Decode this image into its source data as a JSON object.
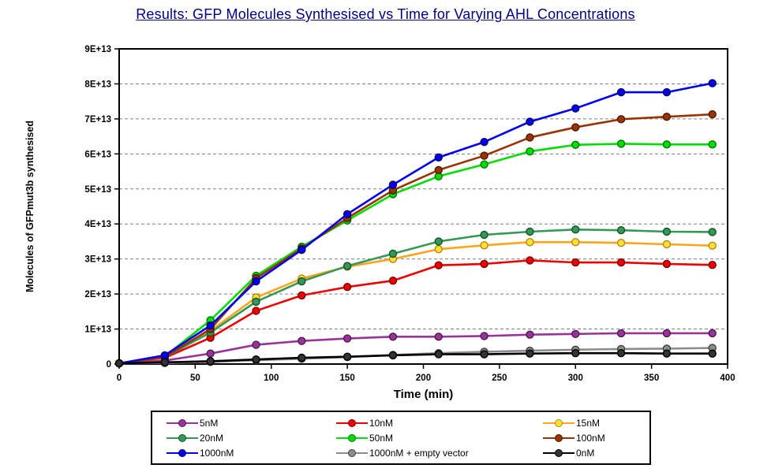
{
  "title": "Results: GFP Molecules Synthesised vs Time for Varying AHL Concentrations",
  "chart_data": {
    "type": "line",
    "title": "Results: GFP Molecules Synthesised vs Time for Varying AHL Concentrations",
    "xlabel": "Time (min)",
    "ylabel": "Molecules of GFPmut3b synthesised",
    "xlim": [
      0,
      400
    ],
    "ylim": [
      0,
      90000000000000.0
    ],
    "xticks": [
      0,
      50,
      100,
      150,
      200,
      250,
      300,
      350,
      400
    ],
    "yticks": [
      0,
      10000000000000.0,
      20000000000000.0,
      30000000000000.0,
      40000000000000.0,
      50000000000000.0,
      60000000000000.0,
      70000000000000.0,
      80000000000000.0,
      90000000000000.0
    ],
    "ytick_labels": [
      "0",
      "1E+13",
      "2E+13",
      "3E+13",
      "4E+13",
      "5E+13",
      "6E+13",
      "7E+13",
      "8E+13",
      "9E+13"
    ],
    "grid": "horizontal-dashed",
    "legend_position": "bottom",
    "x": [
      0,
      30,
      60,
      90,
      120,
      150,
      180,
      210,
      240,
      270,
      300,
      330,
      360,
      390
    ],
    "series": [
      {
        "name": "5nM",
        "color": "#993399",
        "marker_fill": "#993399",
        "marker_edge": "#4d1a4d",
        "values": [
          200000000000.0,
          1000000000000.0,
          3000000000000.0,
          5500000000000.0,
          6600000000000.0,
          7300000000000.0,
          7800000000000.0,
          7800000000000.0,
          8000000000000.0,
          8400000000000.0,
          8600000000000.0,
          8800000000000.0,
          8800000000000.0,
          8800000000000.0
        ]
      },
      {
        "name": "10nM",
        "color": "#ee0000",
        "marker_fill": "#ee0000",
        "marker_edge": "#7a0000",
        "values": [
          200000000000.0,
          1800000000000.0,
          7500000000000.0,
          15200000000000.0,
          19600000000000.0,
          22000000000000.0,
          23800000000000.0,
          28200000000000.0,
          28600000000000.0,
          29600000000000.0,
          29000000000000.0,
          29000000000000.0,
          28600000000000.0,
          28300000000000.0
        ]
      },
      {
        "name": "15nM",
        "color": "#ffa41c",
        "marker_fill": "#ffe135",
        "marker_edge": "#b8860b",
        "values": [
          200000000000.0,
          2000000000000.0,
          9500000000000.0,
          19000000000000.0,
          24400000000000.0,
          27800000000000.0,
          30000000000000.0,
          32800000000000.0,
          33900000000000.0,
          34800000000000.0,
          34800000000000.0,
          34600000000000.0,
          34200000000000.0,
          33800000000000.0
        ]
      },
      {
        "name": "20nM",
        "color": "#339955",
        "marker_fill": "#339955",
        "marker_edge": "#14522b",
        "values": [
          200000000000.0,
          2000000000000.0,
          9000000000000.0,
          17800000000000.0,
          23600000000000.0,
          28000000000000.0,
          31500000000000.0,
          35000000000000.0,
          36900000000000.0,
          37800000000000.0,
          38400000000000.0,
          38200000000000.0,
          37800000000000.0,
          37700000000000.0
        ]
      },
      {
        "name": "50nM",
        "color": "#00dd00",
        "marker_fill": "#00dd00",
        "marker_edge": "#007700",
        "values": [
          200000000000.0,
          2200000000000.0,
          12500000000000.0,
          25200000000000.0,
          33500000000000.0,
          41000000000000.0,
          48500000000000.0,
          53600000000000.0,
          57000000000000.0,
          60700000000000.0,
          62600000000000.0,
          62900000000000.0,
          62700000000000.0,
          62700000000000.0
        ]
      },
      {
        "name": "100nM",
        "color": "#993300",
        "marker_fill": "#993300",
        "marker_edge": "#4d1a00",
        "values": [
          200000000000.0,
          2000000000000.0,
          10000000000000.0,
          24500000000000.0,
          33000000000000.0,
          41700000000000.0,
          49600000000000.0,
          55400000000000.0,
          59500000000000.0,
          64700000000000.0,
          67600000000000.0,
          69900000000000.0,
          70600000000000.0,
          71300000000000.0
        ]
      },
      {
        "name": "1000nM",
        "color": "#0000ee",
        "marker_fill": "#0000ee",
        "marker_edge": "#000066",
        "values": [
          200000000000.0,
          2500000000000.0,
          11000000000000.0,
          23600000000000.0,
          32600000000000.0,
          42800000000000.0,
          51200000000000.0,
          59000000000000.0,
          63400000000000.0,
          69200000000000.0,
          73000000000000.0,
          77600000000000.0,
          77600000000000.0,
          80200000000000.0
        ]
      },
      {
        "name": "1000nM + empty vector",
        "color": "#8c8c8c",
        "marker_fill": "#8c8c8c",
        "marker_edge": "#404040",
        "values": [
          200000000000.0,
          300000000000.0,
          600000000000.0,
          1100000000000.0,
          1500000000000.0,
          2000000000000.0,
          2600000000000.0,
          3100000000000.0,
          3500000000000.0,
          3800000000000.0,
          4100000000000.0,
          4300000000000.0,
          4400000000000.0,
          4600000000000.0
        ]
      },
      {
        "name": "0nM",
        "color": "#000000",
        "marker_fill": "#333333",
        "marker_edge": "#000000",
        "values": [
          200000000000.0,
          500000000000.0,
          800000000000.0,
          1300000000000.0,
          1800000000000.0,
          2100000000000.0,
          2500000000000.0,
          2800000000000.0,
          2800000000000.0,
          3000000000000.0,
          3100000000000.0,
          3100000000000.0,
          3000000000000.0,
          3000000000000.0
        ]
      }
    ]
  },
  "colors": {
    "title": "#000080",
    "axis": "#000000",
    "gridline": "#808080",
    "background": "#ffffff"
  }
}
